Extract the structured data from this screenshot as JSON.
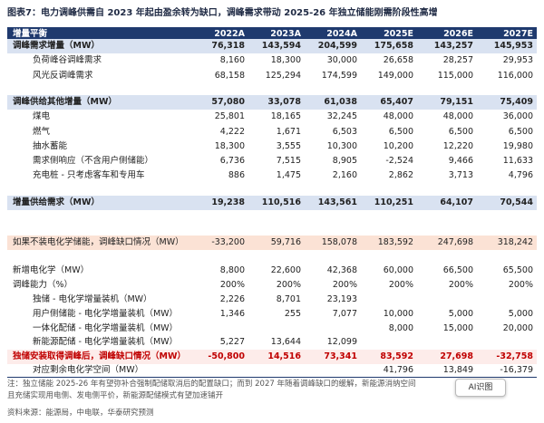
{
  "title": "图表7：电力调峰供需自 2023 年起由盈余转为缺口，调峰需求带动 2025-26 年独立储能刚需阶段性高增",
  "table": {
    "header": [
      "增量平衡",
      "2022A",
      "2023A",
      "2024A",
      "2025E",
      "2026E",
      "2027E"
    ],
    "rows": [
      [
        "调峰需求增量（MW）",
        "76,318",
        "143,594",
        "204,599",
        "175,658",
        "143,257",
        "145,953"
      ],
      [
        "负荷峰谷调峰需求",
        "8,160",
        "18,300",
        "30,000",
        "26,658",
        "28,257",
        "29,953"
      ],
      [
        "风光反调峰需求",
        "68,158",
        "125,294",
        "174,599",
        "149,000",
        "115,000",
        "116,000"
      ],
      [
        "调峰供给其他增量（MW）",
        "57,080",
        "33,078",
        "61,038",
        "65,407",
        "79,151",
        "75,409"
      ],
      [
        "煤电",
        "25,801",
        "18,165",
        "32,245",
        "48,000",
        "48,000",
        "36,000"
      ],
      [
        "燃气",
        "4,222",
        "1,671",
        "6,503",
        "6,500",
        "6,500",
        "6,500"
      ],
      [
        "抽水蓄能",
        "18,300",
        "3,555",
        "10,300",
        "10,200",
        "12,220",
        "19,980"
      ],
      [
        "需求侧响应（不含用户侧储能）",
        "6,736",
        "7,515",
        "8,905",
        "-2,524",
        "9,466",
        "11,633"
      ],
      [
        "充电桩 - 只考虑客车和专用车",
        "886",
        "1,475",
        "2,160",
        "2,862",
        "3,713",
        "4,796"
      ],
      [
        "增量供给需求（MW）",
        "19,238",
        "110,516",
        "143,561",
        "110,251",
        "64,107",
        "70,544"
      ],
      [
        "如果不装电化学储能，调峰缺口情况（MW）",
        "-33,200",
        "59,716",
        "158,078",
        "183,592",
        "247,698",
        "318,242"
      ],
      [
        "新增电化学（MW）",
        "8,800",
        "22,600",
        "42,368",
        "60,000",
        "66,500",
        "65,500"
      ],
      [
        "调峰能力（%）",
        "200%",
        "200%",
        "200%",
        "200%",
        "200%",
        "200%"
      ],
      [
        "独储 - 电化学增量装机（MW）",
        "2,226",
        "8,701",
        "23,193",
        null,
        null,
        null
      ],
      [
        "用户侧储能 - 电化学增量装机（MW）",
        "1,346",
        "255",
        "7,077",
        "10,000",
        "5,000",
        "5,000"
      ],
      [
        "一体化配储 - 电化学增量装机（MW）",
        null,
        null,
        null,
        "8,000",
        "15,000",
        "20,000"
      ],
      [
        "新能源配储 - 电化学增量装机（MW）",
        "5,227",
        "13,644",
        "12,099",
        null,
        null,
        null
      ],
      [
        "独储安装取得调峰后，调峰缺口情况（MW）",
        "-50,800",
        "14,516",
        "73,341",
        "83,592",
        "27,698",
        "-32,758"
      ],
      [
        "对应剩余电化学空间（MW）",
        null,
        null,
        null,
        "41,796",
        "13,849",
        "-16,379"
      ]
    ]
  },
  "notes": [
    "注：独立储能 2025-26 年有望弥补合强制配储取消后的配置缺口；而到 2027 年随着调峰缺口的缓解，新能源消纳空间",
    "且充储实现用电侧、发电侧平价，新能源配储模式有望加速铺开"
  ],
  "source": "资料来源：能源局，中电联，华泰研究预测",
  "badge": "AI识图"
}
